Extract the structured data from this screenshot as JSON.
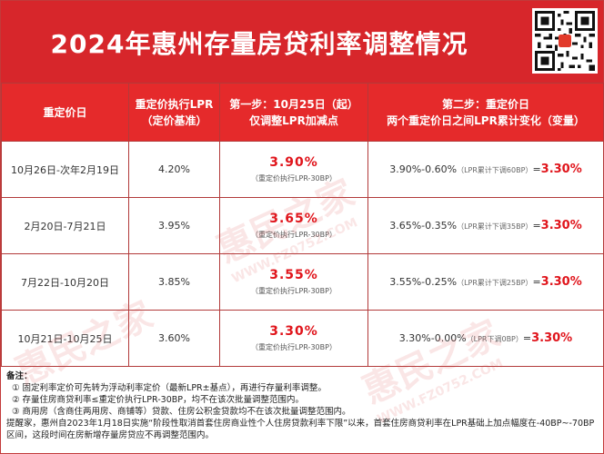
{
  "header": {
    "title": "2024年惠州存量房贷利率调整情况"
  },
  "table": {
    "columns": [
      "重定价日",
      "重定价执行LPR\n（定价基准）",
      "第一步：10月25日（起）\n仅调整LPR加减点",
      "第二步：重定价日\n两个重定价日之间LPR累计变化（变量）"
    ],
    "rows": [
      {
        "period": "10月26日-次年2月19日",
        "lpr": "4.20%",
        "step1_rate": "3.90%",
        "step1_note": "（重定价执行LPR-30BP）",
        "step2_expr": "3.90%-0.60%",
        "step2_note": "（LPR累计下调60BP）",
        "step2_eq": "=",
        "step2_result": "3.30%"
      },
      {
        "period": "2月20日-7月21日",
        "lpr": "3.95%",
        "step1_rate": "3.65%",
        "step1_note": "（重定价执行LPR-30BP）",
        "step2_expr": "3.65%-0.35%",
        "step2_note": "（LPR累计下调35BP）",
        "step2_eq": "=",
        "step2_result": "3.30%"
      },
      {
        "period": "7月22日-10月20日",
        "lpr": "3.85%",
        "step1_rate": "3.55%",
        "step1_note": "（重定价执行LPR-30BP）",
        "step2_expr": "3.55%-0.25%",
        "step2_note": "（LPR累计下调25BP）",
        "step2_eq": "=",
        "step2_result": "3.30%"
      },
      {
        "period": "10月21日-10月25日",
        "lpr": "3.60%",
        "step1_rate": "3.30%",
        "step1_note": "（重定价执行LPR-30BP）",
        "step2_expr": "3.30%-0.00%",
        "step2_note": "（LPR下调0BP）",
        "step2_eq": "=",
        "step2_result": "3.30%"
      }
    ]
  },
  "notes": {
    "heading": "备注：",
    "items": [
      "① 固定利率定价可先转为浮动利率定价（最新LPR±基点），再进行存量利率调整。",
      "② 存量住房商贷利率≤重定价执行LPR-30BP，均不在该次批量调整范围内。",
      "③ 商用房（含商住两用房、商铺等）贷款、住房公积金贷款均不在该次批量调整范围内。"
    ],
    "reminder": "提醒家，惠州自2023年1月18日实施“阶段性取消首套住房商业性个人住房贷款利率下限”以来，首套住房商贷利率在LPR基础上加点幅度在-40BP~-70BP区间，这段时间在房新增存量房贷应不再调整范围内。"
  },
  "watermark": {
    "brand": "惠民之家",
    "url": "WWW.FZ0752.COM"
  },
  "colors": {
    "header_red": "#d7262b",
    "table_head_red": "#e52a2b",
    "rate_red": "#e0141b"
  },
  "icons": {
    "qr": "qr-code-icon"
  }
}
